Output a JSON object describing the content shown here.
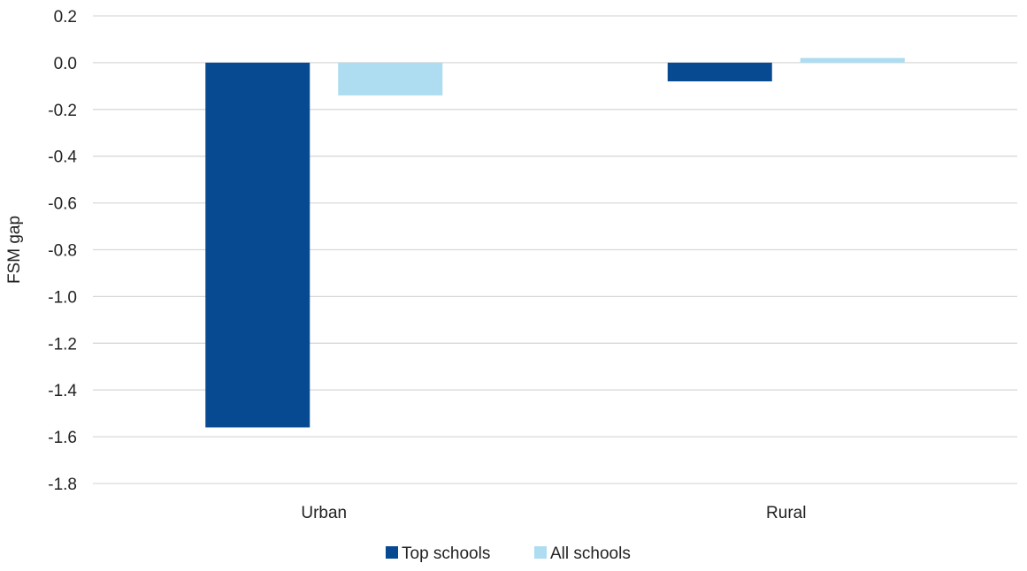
{
  "chart_data": {
    "type": "bar",
    "categories": [
      "Urban",
      "Rural"
    ],
    "series": [
      {
        "name": "Top schools",
        "values": [
          -1.56,
          -0.08
        ],
        "color": "#084a91"
      },
      {
        "name": "All schools",
        "values": [
          -0.14,
          0.02
        ],
        "color": "#aedcf0"
      }
    ],
    "ylabel": "FSM gap",
    "xlabel": "",
    "ylim": [
      -1.8,
      0.2
    ],
    "yticks": [
      "0.2",
      "0.0",
      "-0.2",
      "-0.4",
      "-0.6",
      "-0.8",
      "-1.0",
      "-1.2",
      "-1.4",
      "-1.6",
      "-1.8"
    ],
    "grid": true,
    "legend_position": "bottom"
  }
}
